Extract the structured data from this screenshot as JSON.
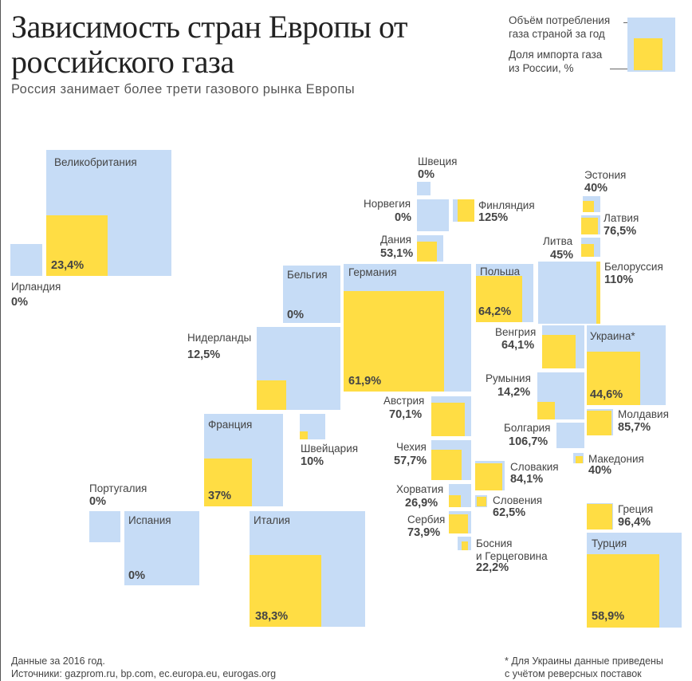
{
  "title": "Зависимость стран Европы от российского газа",
  "subtitle": "Россия занимает более трети газового рынка Европы",
  "legend": {
    "consumption": "Объём потребления газа страной за год",
    "import_share": "Доля импорта газа из России, %"
  },
  "colors": {
    "consumption": "#c6dcf6",
    "import_share": "#ffdd44"
  },
  "chart_data": {
    "type": "treemap-squares",
    "title": "Зависимость стран Европы от российского газа",
    "subtitle": "Россия занимает более трети газового рынка Европы",
    "series": [
      {
        "name": "Объём потребления газа страной за год",
        "encoding": "area of blue square"
      },
      {
        "name": "Доля импорта газа из России, %",
        "encoding": "area of yellow square"
      }
    ],
    "countries": [
      {
        "name": "Великобритания",
        "share": 23.4,
        "label": "23,4%"
      },
      {
        "name": "Ирландия",
        "share": 0,
        "label": "0%"
      },
      {
        "name": "Швеция",
        "share": 0,
        "label": "0%"
      },
      {
        "name": "Норвегия",
        "share": 0,
        "label": "0%"
      },
      {
        "name": "Финляндия",
        "share": 125,
        "label": "125%"
      },
      {
        "name": "Дания",
        "share": 53.1,
        "label": "53,1%"
      },
      {
        "name": "Эстония",
        "share": 40,
        "label": "40%"
      },
      {
        "name": "Латвия",
        "share": 76.5,
        "label": "76,5%"
      },
      {
        "name": "Литва",
        "share": 45,
        "label": "45%"
      },
      {
        "name": "Белоруссия",
        "share": 110,
        "label": "110%"
      },
      {
        "name": "Бельгия",
        "share": 0,
        "label": "0%"
      },
      {
        "name": "Германия",
        "share": 61.9,
        "label": "61,9%"
      },
      {
        "name": "Польша",
        "share": 64.2,
        "label": "64,2%"
      },
      {
        "name": "Нидерланды",
        "share": 12.5,
        "label": "12,5%"
      },
      {
        "name": "Венгрия",
        "share": 64.1,
        "label": "64,1%"
      },
      {
        "name": "Украина*",
        "share": 44.6,
        "label": "44,6%"
      },
      {
        "name": "Румыния",
        "share": 14.2,
        "label": "14,2%"
      },
      {
        "name": "Молдавия",
        "share": 85.7,
        "label": "85,7%"
      },
      {
        "name": "Австрия",
        "share": 70.1,
        "label": "70,1%"
      },
      {
        "name": "Болгария",
        "share": 106.7,
        "label": "106,7%"
      },
      {
        "name": "Франция",
        "share": 37,
        "label": "37%"
      },
      {
        "name": "Швейцария",
        "share": 10,
        "label": "10%"
      },
      {
        "name": "Чехия",
        "share": 57.7,
        "label": "57,7%"
      },
      {
        "name": "Македония",
        "share": 40,
        "label": "40%"
      },
      {
        "name": "Словакия",
        "share": 84.1,
        "label": "84,1%"
      },
      {
        "name": "Португалия",
        "share": 0,
        "label": "0%"
      },
      {
        "name": "Хорватия",
        "share": 26.9,
        "label": "26,9%"
      },
      {
        "name": "Словения",
        "share": 62.5,
        "label": "62,5%"
      },
      {
        "name": "Греция",
        "share": 96.4,
        "label": "96,4%"
      },
      {
        "name": "Испания",
        "share": 0,
        "label": "0%"
      },
      {
        "name": "Италия",
        "share": 38.3,
        "label": "38,3%"
      },
      {
        "name": "Сербия",
        "share": 73.9,
        "label": "73,9%"
      },
      {
        "name": "Босния и Герцеговина",
        "share": 22.2,
        "label": "22,2%"
      },
      {
        "name": "Турция",
        "share": 58.9,
        "label": "58,9%"
      }
    ]
  },
  "labels": {
    "bosnia_line1": "Босния",
    "bosnia_line2": "и Герцеговина"
  },
  "footer": {
    "data_year": "Данные за 2016 год.",
    "sources": "Источники: gazprom.ru, bp.com, ec.europa.eu, eurogas.org",
    "note_line1": "* Для Украины данные приведены",
    "note_line2": "с учётом реверсных поставок"
  }
}
